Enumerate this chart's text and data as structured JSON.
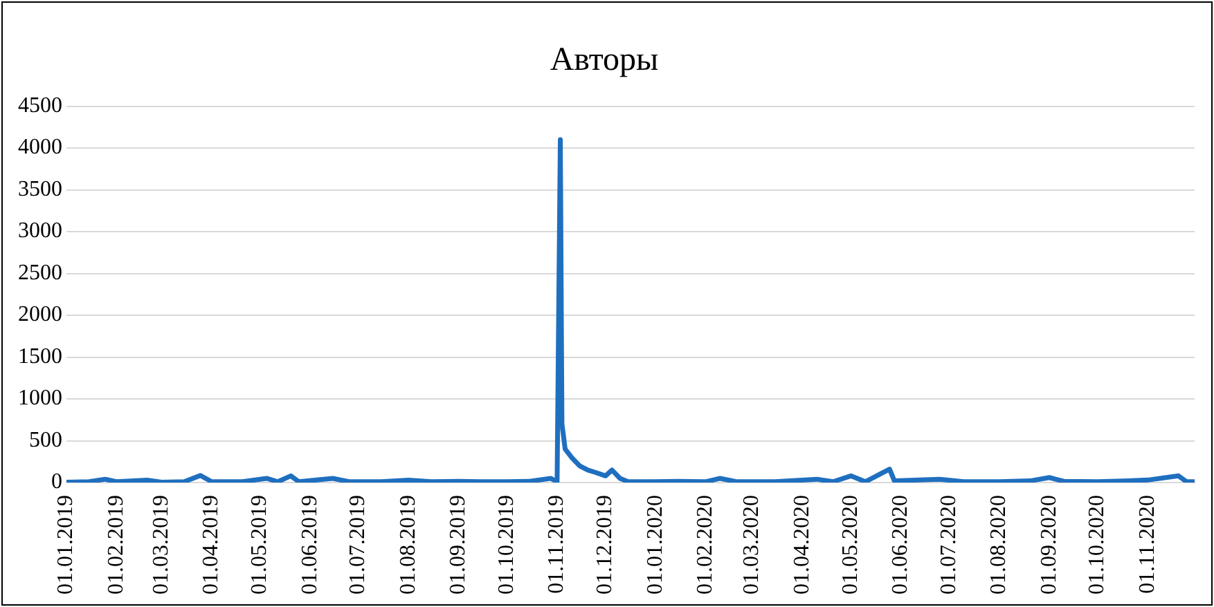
{
  "chart_data": {
    "type": "line",
    "title": "Авторы",
    "x": [
      "2019-01-01",
      "2019-01-15",
      "2019-01-25",
      "2019-02-01",
      "2019-02-20",
      "2019-03-01",
      "2019-03-15",
      "2019-03-25",
      "2019-04-01",
      "2019-04-20",
      "2019-05-05",
      "2019-05-12",
      "2019-05-20",
      "2019-05-25",
      "2019-06-15",
      "2019-06-25",
      "2019-07-15",
      "2019-08-01",
      "2019-08-15",
      "2019-09-01",
      "2019-09-15",
      "2019-10-01",
      "2019-10-15",
      "2019-10-28",
      "2019-11-01",
      "2019-11-03",
      "2019-11-04",
      "2019-11-06",
      "2019-11-10",
      "2019-11-15",
      "2019-11-20",
      "2019-11-25",
      "2019-12-01",
      "2019-12-05",
      "2019-12-10",
      "2019-12-15",
      "2019-12-31",
      "2020-01-15",
      "2020-02-01",
      "2020-02-10",
      "2020-02-20",
      "2020-03-15",
      "2020-04-10",
      "2020-04-20",
      "2020-05-01",
      "2020-05-10",
      "2020-05-25",
      "2020-05-28",
      "2020-06-25",
      "2020-07-10",
      "2020-08-01",
      "2020-08-20",
      "2020-09-01",
      "2020-09-10",
      "2020-10-01",
      "2020-10-20",
      "2020-11-01",
      "2020-11-20",
      "2020-11-25",
      "2020-11-30"
    ],
    "values": [
      5,
      10,
      40,
      10,
      30,
      5,
      10,
      85,
      10,
      10,
      50,
      10,
      80,
      10,
      50,
      10,
      10,
      30,
      10,
      15,
      10,
      10,
      15,
      50,
      10,
      4100,
      700,
      400,
      300,
      200,
      150,
      120,
      80,
      150,
      50,
      10,
      10,
      15,
      10,
      50,
      10,
      10,
      40,
      10,
      80,
      10,
      160,
      20,
      40,
      10,
      10,
      20,
      60,
      15,
      10,
      20,
      30,
      80,
      10,
      10
    ],
    "color": "#1f6fbf",
    "xlim": [
      "2019-01-01",
      "2020-11-30"
    ],
    "xticks": [
      {
        "value": "2019-01-01",
        "label": "01.01.2019"
      },
      {
        "value": "2019-02-01",
        "label": "01.02.2019"
      },
      {
        "value": "2019-03-01",
        "label": "01.03.2019"
      },
      {
        "value": "2019-04-01",
        "label": "01.04.2019"
      },
      {
        "value": "2019-05-01",
        "label": "01.05.2019"
      },
      {
        "value": "2019-06-01",
        "label": "01.06.2019"
      },
      {
        "value": "2019-07-01",
        "label": "01.07.2019"
      },
      {
        "value": "2019-08-01",
        "label": "01.08.2019"
      },
      {
        "value": "2019-09-01",
        "label": "01.09.2019"
      },
      {
        "value": "2019-10-01",
        "label": "01.10.2019"
      },
      {
        "value": "2019-11-01",
        "label": "01.11.2019"
      },
      {
        "value": "2019-12-01",
        "label": "01.12.2019"
      },
      {
        "value": "2020-01-01",
        "label": "01.01.2020"
      },
      {
        "value": "2020-02-01",
        "label": "01.02.2020"
      },
      {
        "value": "2020-03-01",
        "label": "01.03.2020"
      },
      {
        "value": "2020-04-01",
        "label": "01.04.2020"
      },
      {
        "value": "2020-05-01",
        "label": "01.05.2020"
      },
      {
        "value": "2020-06-01",
        "label": "01.06.2020"
      },
      {
        "value": "2020-07-01",
        "label": "01.07.2020"
      },
      {
        "value": "2020-08-01",
        "label": "01.08.2020"
      },
      {
        "value": "2020-09-01",
        "label": "01.09.2020"
      },
      {
        "value": "2020-10-01",
        "label": "01.10.2020"
      },
      {
        "value": "2020-11-01",
        "label": "01.11.2020"
      }
    ],
    "ylim": [
      0,
      4500
    ],
    "yticks": [
      0,
      500,
      1000,
      1500,
      2000,
      2500,
      3000,
      3500,
      4000,
      4500
    ],
    "grid": "y",
    "legend": false,
    "marker": "none",
    "line_style": "solid"
  }
}
